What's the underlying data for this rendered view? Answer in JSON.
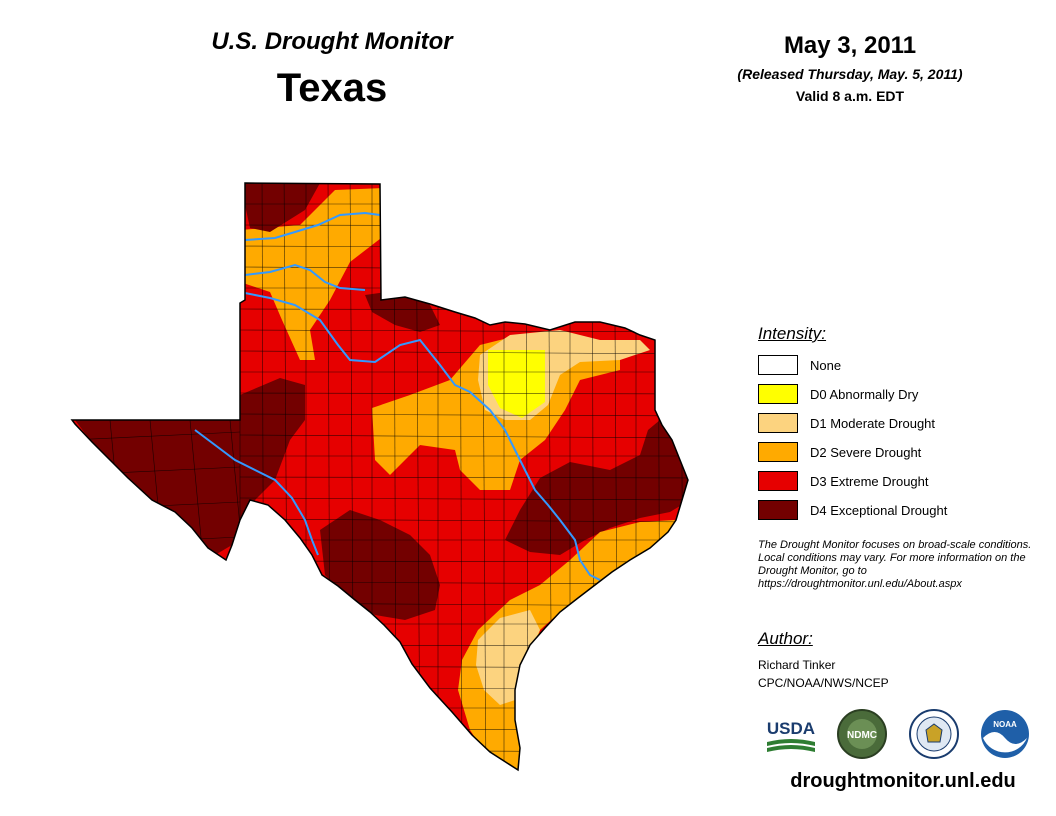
{
  "header": {
    "title": "U.S. Drought Monitor",
    "state": "Texas",
    "date": "May 3, 2011",
    "released": "(Released Thursday, May. 5, 2011)",
    "valid": "Valid 8 a.m. EDT"
  },
  "legend": {
    "title": "Intensity:",
    "items": [
      {
        "label": "None",
        "color": "#ffffff"
      },
      {
        "label": "D0 Abnormally Dry",
        "color": "#ffff00"
      },
      {
        "label": "D1 Moderate Drought",
        "color": "#fcd37f"
      },
      {
        "label": "D2 Severe Drought",
        "color": "#ffaa00"
      },
      {
        "label": "D3 Extreme Drought",
        "color": "#e60000"
      },
      {
        "label": "D4 Exceptional Drought",
        "color": "#730000"
      }
    ]
  },
  "note": "The Drought Monitor focuses on broad-scale conditions. Local conditions may vary. For more information on the Drought Monitor, go to https://droughtmonitor.unl.edu/About.aspx",
  "author": {
    "title": "Author:",
    "name": "Richard Tinker",
    "org": "CPC/NOAA/NWS/NCEP"
  },
  "logos": [
    {
      "name": "usda-logo",
      "text": "USDA"
    },
    {
      "name": "ndmc-logo",
      "text": "NDMC"
    },
    {
      "name": "doc-seal-logo",
      "text": ""
    },
    {
      "name": "noaa-logo",
      "text": "NOAA"
    }
  ],
  "website": "droughtmonitor.unl.edu",
  "colors": {
    "river": "#3399ff",
    "county_line": "#000000"
  }
}
